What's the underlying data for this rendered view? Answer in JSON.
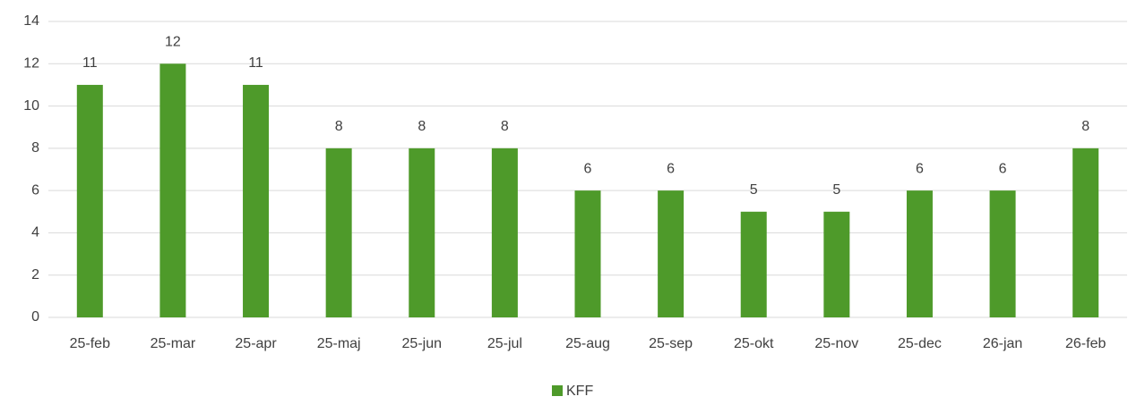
{
  "chart_data": {
    "type": "bar",
    "categories": [
      "25-feb",
      "25-mar",
      "25-apr",
      "25-maj",
      "25-jun",
      "25-jul",
      "25-aug",
      "25-sep",
      "25-okt",
      "25-nov",
      "25-dec",
      "26-jan",
      "26-feb"
    ],
    "series": [
      {
        "name": "KFF",
        "color": "#4e9a2a",
        "values": [
          11,
          12,
          11,
          8,
          8,
          8,
          6,
          6,
          5,
          5,
          6,
          6,
          8
        ]
      }
    ],
    "ylim": [
      0,
      14
    ],
    "yticks": [
      0,
      2,
      4,
      6,
      8,
      10,
      12,
      14
    ],
    "grid": true,
    "legend": "bottom"
  }
}
